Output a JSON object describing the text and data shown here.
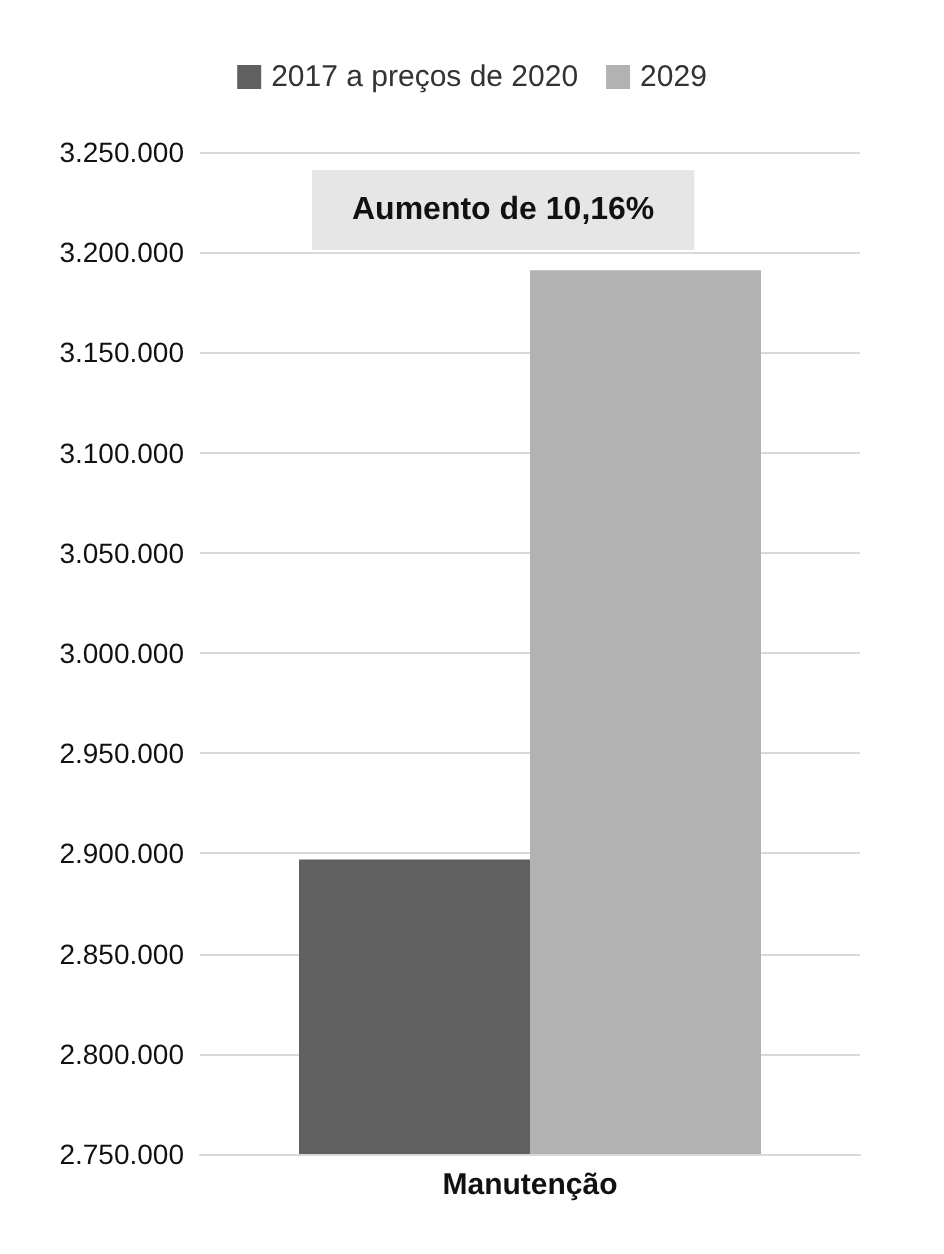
{
  "chart_data": {
    "type": "bar",
    "categories": [
      "Manutenção"
    ],
    "series": [
      {
        "name": "2017 a preços de 2020",
        "color": "#606060",
        "values": [
          2897000
        ]
      },
      {
        "name": "2029",
        "color": "#b2b2b2",
        "values": [
          3191000
        ]
      }
    ],
    "ylim": [
      2750000,
      3250000
    ],
    "yticks": [
      {
        "value": 2750000,
        "label": "2.750.000"
      },
      {
        "value": 2800000,
        "label": "2.800.000"
      },
      {
        "value": 2850000,
        "label": "2.850.000"
      },
      {
        "value": 2900000,
        "label": "2.900.000"
      },
      {
        "value": 2950000,
        "label": "2.950.000"
      },
      {
        "value": 3000000,
        "label": "3.000.000"
      },
      {
        "value": 3050000,
        "label": "3.050.000"
      },
      {
        "value": 3100000,
        "label": "3.100.000"
      },
      {
        "value": 3150000,
        "label": "3.150.000"
      },
      {
        "value": 3200000,
        "label": "3.200.000"
      },
      {
        "value": 3250000,
        "label": "3.250.000"
      }
    ],
    "annotations": [
      "Aumento de 10,16%"
    ],
    "grid": "y",
    "legend": "top"
  }
}
